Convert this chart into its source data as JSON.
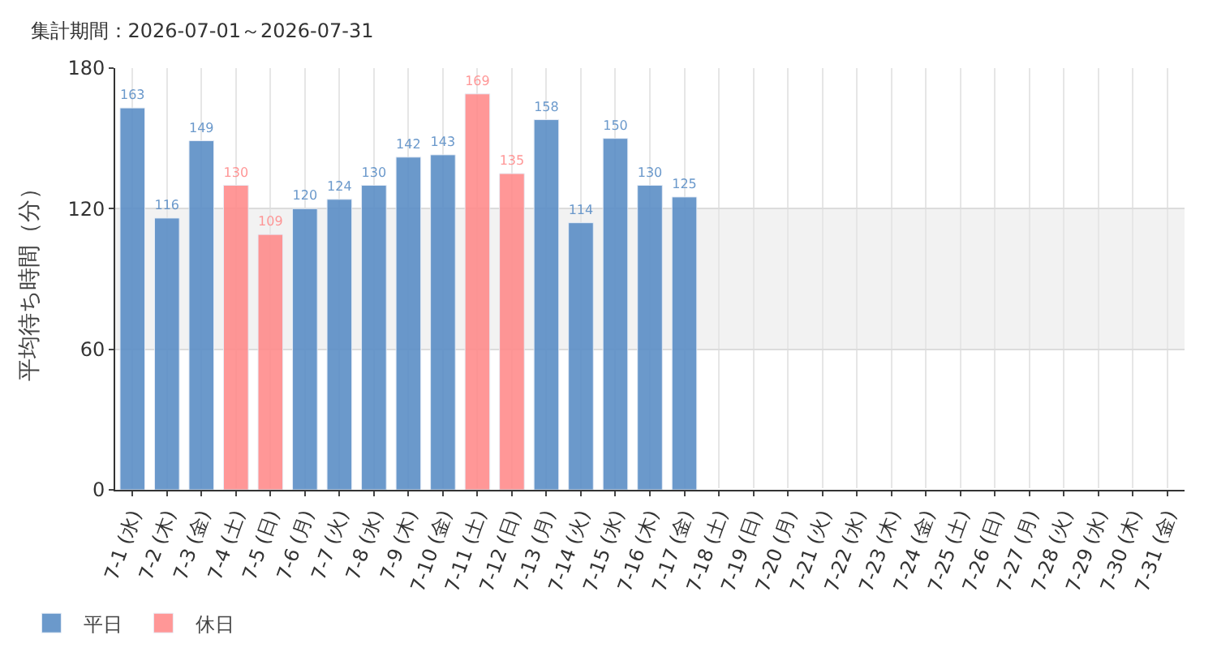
{
  "chart_data": {
    "type": "bar",
    "title": "集計期間：2026-07-01～2026-07-31",
    "ylabel": "平均待ち時間（分）",
    "categories": [
      "7-1 (水)",
      "7-2 (木)",
      "7-3 (金)",
      "7-4 (土)",
      "7-5 (日)",
      "7-6 (月)",
      "7-7 (火)",
      "7-8 (水)",
      "7-9 (木)",
      "7-10 (金)",
      "7-11 (土)",
      "7-12 (日)",
      "7-13 (月)",
      "7-14 (火)",
      "7-15 (水)",
      "7-16 (木)",
      "7-17 (金)",
      "7-18 (土)",
      "7-19 (日)",
      "7-20 (月)",
      "7-21 (火)",
      "7-22 (水)",
      "7-23 (木)",
      "7-24 (金)",
      "7-25 (土)",
      "7-26 (日)",
      "7-27 (月)",
      "7-28 (火)",
      "7-29 (水)",
      "7-30 (木)",
      "7-31 (金)"
    ],
    "series": [
      {
        "name": "平日",
        "color": "#5b8ec6",
        "values": [
          163,
          116,
          149,
          null,
          null,
          120,
          124,
          130,
          142,
          143,
          null,
          null,
          158,
          114,
          150,
          130,
          125,
          null,
          null,
          null,
          null,
          null,
          null,
          null,
          null,
          null,
          null,
          null,
          null,
          null,
          null
        ]
      },
      {
        "name": "休日",
        "color": "#ff8c8c",
        "values": [
          null,
          null,
          null,
          130,
          109,
          null,
          null,
          null,
          null,
          null,
          169,
          135,
          null,
          null,
          null,
          null,
          null,
          null,
          null,
          null,
          null,
          null,
          null,
          null,
          null,
          null,
          null,
          null,
          null,
          null,
          null
        ]
      }
    ],
    "ylim": [
      0,
      180
    ],
    "yticks": [
      0,
      60,
      120,
      180
    ],
    "grid": true,
    "legend": "bottom left",
    "data_labels": true,
    "bands": [
      {
        "axis": "y",
        "from": 60,
        "to": 120,
        "color": "#f2f2f2"
      }
    ]
  }
}
